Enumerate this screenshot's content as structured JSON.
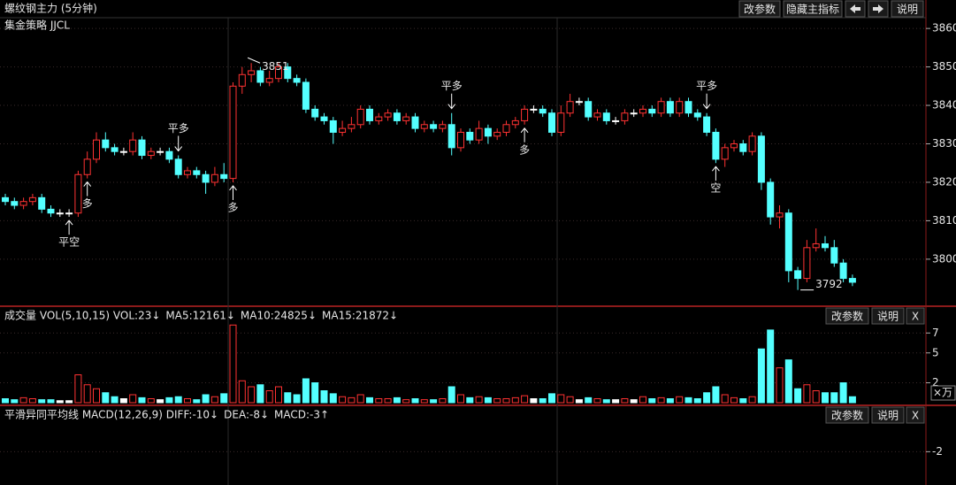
{
  "chart_data": [
    {
      "type": "candlestick",
      "title": "螺纹钢主力 (5分钟)",
      "subtitle": "集金策略 JJCL",
      "buttons": [
        "改参数",
        "隐藏主指标",
        "说明"
      ],
      "up_color": "#ff3232",
      "down_color": "#54ffff",
      "flat_color": "#ffffff",
      "open": [
        3816,
        3815,
        3814,
        3815,
        3816,
        3813,
        3812,
        3812,
        3812,
        3822,
        3826,
        3831,
        3829,
        3828,
        3828,
        3831,
        3827,
        3828,
        3828,
        3826,
        3822,
        3823,
        3822,
        3820,
        3822,
        3821,
        3845,
        3848,
        3849,
        3846,
        3847,
        3850,
        3847,
        3846,
        3839,
        3837,
        3836,
        3833,
        3834,
        3835,
        3839,
        3836,
        3837,
        3838,
        3836,
        3837,
        3834,
        3835,
        3834,
        3835,
        3829,
        3833,
        3831,
        3834,
        3832,
        3833,
        3835,
        3836,
        3839,
        3839,
        3838,
        3833,
        3838,
        3841,
        3841,
        3837,
        3838,
        3836,
        3836,
        3838,
        3838,
        3839,
        3838,
        3841,
        3838,
        3841,
        3838,
        3837,
        3833,
        3826,
        3829,
        3830,
        3828,
        3832,
        3820,
        3811,
        3812,
        3797,
        3795,
        3803,
        3804,
        3803,
        3799,
        3795
      ],
      "high": [
        3817,
        3816,
        3816,
        3817,
        3817,
        3814,
        3813,
        3813,
        3823,
        3828,
        3833,
        3833,
        3830,
        3829,
        3833,
        3832,
        3829,
        3829,
        3829,
        3827,
        3824,
        3824,
        3823,
        3824,
        3825,
        3846,
        3850,
        3851,
        3850,
        3849,
        3851,
        3851,
        3848,
        3847,
        3840,
        3838,
        3837,
        3836,
        3837,
        3840,
        3840,
        3838,
        3839,
        3839,
        3838,
        3838,
        3836,
        3836,
        3836,
        3838,
        3834,
        3834,
        3836,
        3835,
        3834,
        3836,
        3837,
        3840,
        3840,
        3840,
        3839,
        3840,
        3843,
        3842,
        3842,
        3839,
        3839,
        3837,
        3839,
        3839,
        3840,
        3840,
        3842,
        3842,
        3842,
        3842,
        3839,
        3838,
        3834,
        3830,
        3831,
        3831,
        3833,
        3833,
        3821,
        3814,
        3813,
        3798,
        3805,
        3808,
        3806,
        3805,
        3800,
        3796
      ],
      "low": [
        3814,
        3813,
        3813,
        3814,
        3812,
        3811,
        3811,
        3811,
        3811,
        3821,
        3825,
        3828,
        3827,
        3827,
        3827,
        3826,
        3826,
        3827,
        3825,
        3821,
        3821,
        3821,
        3817,
        3819,
        3820,
        3820,
        3843,
        3846,
        3845,
        3845,
        3846,
        3846,
        3845,
        3838,
        3836,
        3835,
        3830,
        3832,
        3833,
        3834,
        3835,
        3835,
        3836,
        3835,
        3835,
        3833,
        3833,
        3833,
        3833,
        3827,
        3828,
        3830,
        3830,
        3830,
        3831,
        3832,
        3834,
        3835,
        3838,
        3837,
        3832,
        3832,
        3837,
        3840,
        3836,
        3836,
        3835,
        3835,
        3835,
        3837,
        3837,
        3837,
        3837,
        3837,
        3837,
        3837,
        3836,
        3832,
        3825,
        3824,
        3828,
        3827,
        3827,
        3818,
        3809,
        3808,
        3794,
        3792,
        3794,
        3802,
        3802,
        3798,
        3794,
        3793
      ],
      "close": [
        3815,
        3814,
        3815,
        3816,
        3813,
        3812,
        3812,
        3812,
        3822,
        3826,
        3831,
        3829,
        3828,
        3828,
        3831,
        3827,
        3828,
        3828,
        3826,
        3822,
        3823,
        3822,
        3820,
        3822,
        3821,
        3845,
        3848,
        3849,
        3846,
        3847,
        3850,
        3847,
        3846,
        3839,
        3837,
        3836,
        3833,
        3834,
        3835,
        3839,
        3836,
        3837,
        3838,
        3836,
        3837,
        3834,
        3835,
        3834,
        3835,
        3829,
        3833,
        3831,
        3834,
        3832,
        3833,
        3835,
        3836,
        3839,
        3839,
        3838,
        3833,
        3838,
        3841,
        3841,
        3837,
        3838,
        3836,
        3836,
        3838,
        3838,
        3839,
        3838,
        3841,
        3838,
        3841,
        3838,
        3837,
        3833,
        3826,
        3829,
        3830,
        3828,
        3832,
        3820,
        3811,
        3812,
        3797,
        3795,
        3803,
        3804,
        3803,
        3799,
        3795,
        3794
      ],
      "high_label": 3851,
      "low_label": 3792,
      "annotations": [
        {
          "text": "平空",
          "candle": 7,
          "side": "below",
          "color": "#ff3232"
        },
        {
          "text": "多",
          "candle": 9,
          "side": "below",
          "color": "#ff3232"
        },
        {
          "text": "平多",
          "candle": 19,
          "side": "above",
          "color": "#2fd02f"
        },
        {
          "text": "多",
          "candle": 25,
          "side": "below",
          "color": "#ff3232"
        },
        {
          "text": "平多",
          "candle": 49,
          "side": "above",
          "color": "#2fd02f"
        },
        {
          "text": "多",
          "candle": 57,
          "side": "below",
          "color": "#ff3232"
        },
        {
          "text": "平多",
          "candle": 77,
          "side": "above",
          "color": "#2fd02f"
        },
        {
          "text": "空",
          "candle": 78,
          "side": "below",
          "color": "#2fd02f"
        }
      ],
      "ylim": [
        3788,
        3867.4
      ],
      "yticks": [
        3800,
        3810,
        3820,
        3830,
        3840,
        3850,
        3860
      ]
    },
    {
      "type": "volume",
      "title": "成交量 VOL(5,10,15) VOL:23↓",
      "indicators": [
        {
          "name": "MA5:12161↓",
          "color": "#ff40ff"
        },
        {
          "name": "MA10:24825↓",
          "color": "#40ff40"
        },
        {
          "name": "MA15:21872↓",
          "color": "#4040ff"
        }
      ],
      "buttons": [
        "改参数",
        "说明",
        "X"
      ],
      "unit": "×万",
      "values": [
        0.4,
        0.3,
        0.5,
        0.4,
        0.3,
        0.3,
        0.2,
        0.2,
        2.8,
        1.8,
        1.4,
        1.0,
        0.6,
        0.4,
        0.8,
        0.5,
        0.4,
        0.3,
        0.5,
        0.6,
        0.4,
        0.3,
        0.8,
        0.6,
        0.9,
        7.8,
        2.2,
        1.6,
        1.8,
        1.2,
        1.6,
        1.0,
        0.8,
        2.4,
        2.0,
        1.2,
        0.9,
        0.6,
        0.5,
        0.8,
        0.5,
        0.4,
        0.4,
        0.5,
        0.3,
        0.4,
        0.3,
        0.3,
        0.4,
        1.6,
        0.8,
        0.5,
        0.6,
        0.5,
        0.4,
        0.4,
        0.5,
        0.7,
        0.4,
        0.4,
        0.9,
        0.8,
        0.6,
        0.3,
        0.5,
        0.4,
        0.3,
        0.3,
        0.4,
        0.3,
        0.6,
        0.4,
        0.5,
        0.4,
        0.6,
        0.5,
        0.4,
        1.0,
        1.6,
        0.8,
        0.5,
        0.4,
        0.6,
        5.4,
        7.3,
        3.5,
        4.3,
        1.4,
        1.8,
        1.2,
        1.0,
        1.0,
        2.0,
        0.6
      ],
      "ylim": [
        0,
        8
      ],
      "yticks": [
        2,
        5,
        7
      ]
    },
    {
      "type": "indicator",
      "title": "平滑异同平均线 MACD(12,26,9) DIFF:-10↓",
      "indicators": [
        {
          "name": "DEA:-8↓",
          "color": "#ff40ff"
        },
        {
          "name": "MACD:-3↑",
          "color": "#40ff40"
        }
      ],
      "buttons": [
        "改参数",
        "说明",
        "X"
      ],
      "ylim": [
        -5,
        1.5
      ],
      "yticks": [
        -2
      ]
    }
  ]
}
